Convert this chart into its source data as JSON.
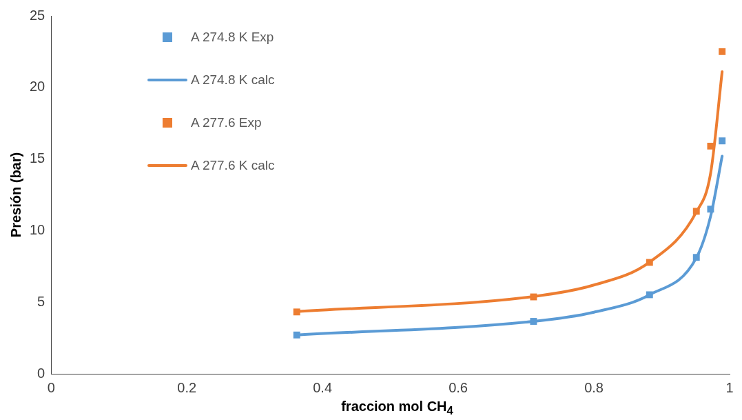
{
  "chart_data": {
    "type": "scatter",
    "xlabel": "fraccion mol CH$_{4}$",
    "ylabel": "Presión (bar)",
    "xlim": [
      0,
      1
    ],
    "xticks": [
      0,
      0.2,
      0.4,
      0.6,
      0.8,
      1
    ],
    "ylim": [
      0,
      25
    ],
    "yticks": [
      0,
      5,
      10,
      15,
      20,
      25
    ],
    "grid": false,
    "legend": "top left",
    "series": [
      {
        "name": "A 274.8 K Exp",
        "type": "scatter",
        "marker": "square",
        "color": "#5b9bd5",
        "x": [
          0.362,
          0.711,
          0.882,
          0.951,
          0.972,
          0.989
        ],
        "values": [
          2.71,
          3.66,
          5.52,
          8.13,
          11.5,
          16.27
        ]
      },
      {
        "name": "A 274.8 K calc",
        "type": "line",
        "marker": "none",
        "color": "#5b9bd5",
        "x": [
          0.362,
          0.711,
          0.8,
          0.882,
          0.951,
          0.972,
          0.989
        ],
        "values": [
          2.71,
          3.66,
          4.3,
          5.52,
          8.1,
          11,
          15.2
        ]
      },
      {
        "name": "A 277.6 Exp",
        "type": "scatter",
        "marker": "square",
        "color": "#ed7d31",
        "x": [
          0.362,
          0.711,
          0.882,
          0.951,
          0.972,
          0.989
        ],
        "values": [
          4.32,
          5.37,
          7.78,
          11.35,
          15.9,
          22.5
        ]
      },
      {
        "name": "A 277.6 K calc",
        "type": "line",
        "marker": "none",
        "color": "#ed7d31",
        "x": [
          0.362,
          0.711,
          0.8,
          0.882,
          0.951,
          0.972,
          0.989
        ],
        "values": [
          4.35,
          5.4,
          6.2,
          7.8,
          11.3,
          14,
          21.1
        ]
      }
    ]
  }
}
